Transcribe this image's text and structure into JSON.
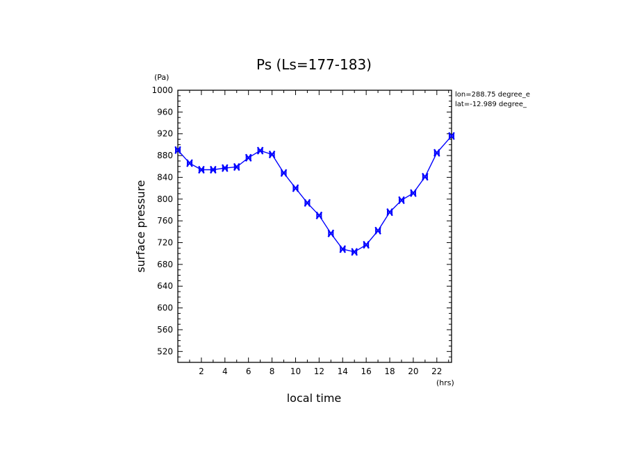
{
  "chart_data": {
    "type": "line",
    "title": "Ps (Ls=177-183)",
    "xlabel": "local time",
    "ylabel": "surface pressure",
    "x_unit": "(hrs)",
    "y_unit": "(Pa)",
    "xlim": [
      0,
      23.25
    ],
    "ylim": [
      500,
      1000
    ],
    "x_ticks": [
      2,
      4,
      6,
      8,
      10,
      12,
      14,
      16,
      18,
      20,
      22
    ],
    "y_ticks": [
      520,
      560,
      600,
      640,
      680,
      720,
      760,
      800,
      840,
      880,
      920,
      960,
      1000
    ],
    "grid": false,
    "annotations": [
      "lon=288.75 degree_e",
      "lat=-12.989 degree_"
    ],
    "color": "#0000ff",
    "series": [
      {
        "x": [
          0.0,
          1.0,
          2.0,
          3.0,
          4.0,
          5.0,
          6.0,
          7.0,
          8.0,
          9.0,
          10.0,
          11.0,
          12.0,
          13.0,
          14.0,
          15.0,
          16.0,
          17.0,
          18.0,
          19.0,
          20.0,
          21.0,
          22.0,
          23.25
        ],
        "values": [
          890,
          866,
          854,
          854,
          857,
          859,
          876,
          889,
          882,
          848,
          820,
          793,
          770,
          737,
          708,
          703,
          716,
          742,
          776,
          798,
          811,
          841,
          885,
          916
        ]
      }
    ]
  }
}
